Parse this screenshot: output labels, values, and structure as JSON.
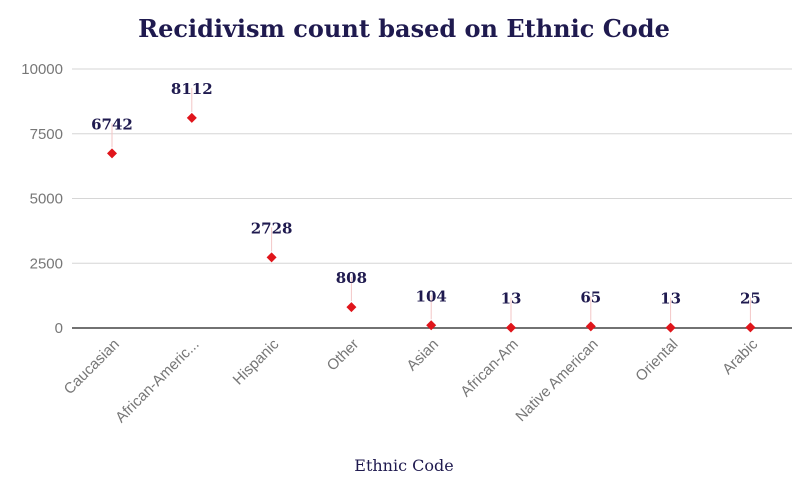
{
  "chart_data": {
    "type": "scatter",
    "title": "Recidivism count based on Ethnic Code",
    "xlabel": "Ethnic Code",
    "ylabel": "",
    "categories": [
      "Caucasian",
      "African-Americ...",
      "Hispanic",
      "Other",
      "Asian",
      "African-Am",
      "Native American",
      "Oriental",
      "Arabic"
    ],
    "values": [
      6742,
      8112,
      2728,
      808,
      104,
      13,
      65,
      13,
      25
    ],
    "data_labels": [
      "6742",
      "8112",
      "2728",
      "808",
      "104",
      "13",
      "65",
      "13",
      "25"
    ],
    "ylim": [
      0,
      10000
    ],
    "yticks": [
      0,
      2500,
      5000,
      7500,
      10000
    ],
    "ytick_labels": [
      "0",
      "2500",
      "5000",
      "7500",
      "10000"
    ],
    "grid": true,
    "marker": "diamond",
    "colors": {
      "marker": "#e0151b",
      "title": "#1f1a4f",
      "grid": "#d6d6d6",
      "axis": "#444444"
    }
  }
}
